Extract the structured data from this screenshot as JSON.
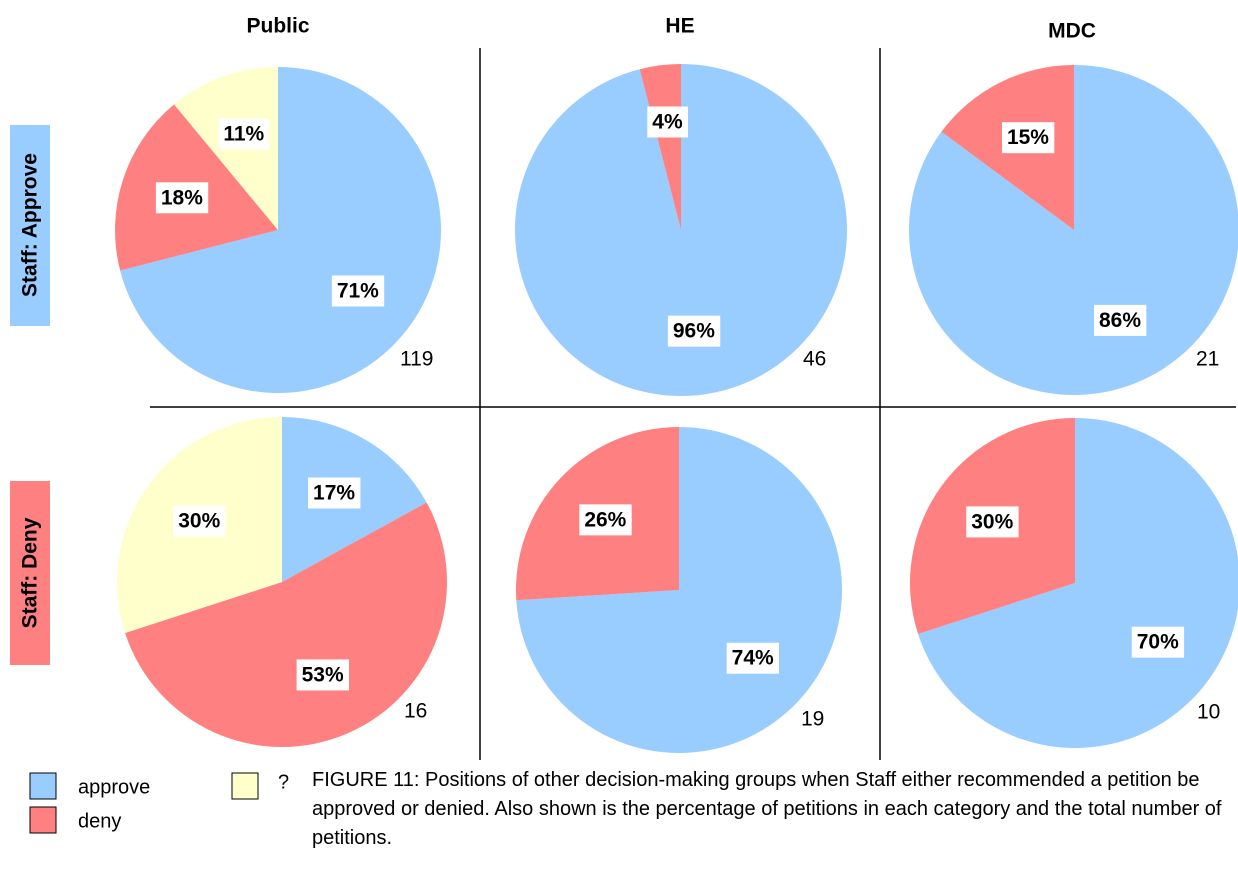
{
  "figure": {
    "columns": [
      "Public",
      "HE",
      "MDC"
    ],
    "rows": [
      "Staff: Approve",
      "Staff: Deny"
    ],
    "caption": "FIGURE 11: Positions of other decision-making groups when Staff either recommended a petition be approved or denied.  Also shown is the percentage of petitions in each category and the total number of petitions."
  },
  "chart_data": [
    {
      "type": "pie",
      "categories": [
        "approve",
        "deny",
        "?"
      ],
      "colors": [
        "#99ccff",
        "#ff8080",
        "#ffffcc"
      ],
      "values": [
        71,
        18,
        11
      ],
      "value_labels": [
        "71%",
        "18%",
        "11%"
      ],
      "n": 119
    },
    {
      "type": "pie",
      "categories": [
        "approve",
        "deny"
      ],
      "colors": [
        "#99ccff",
        "#ff8080"
      ],
      "values": [
        96,
        4
      ],
      "value_labels": [
        "96%",
        "4%"
      ],
      "n": 46
    },
    {
      "type": "pie",
      "categories": [
        "approve",
        "deny"
      ],
      "colors": [
        "#99ccff",
        "#ff8080"
      ],
      "values": [
        86,
        15
      ],
      "value_labels": [
        "86%",
        "15%"
      ],
      "n": 21
    },
    {
      "type": "pie",
      "categories": [
        "approve",
        "deny",
        "?"
      ],
      "colors": [
        "#99ccff",
        "#ff8080",
        "#ffffcc"
      ],
      "values": [
        17,
        53,
        30
      ],
      "value_labels": [
        "17%",
        "53%",
        "30%"
      ],
      "n": 16
    },
    {
      "type": "pie",
      "categories": [
        "approve",
        "deny"
      ],
      "colors": [
        "#99ccff",
        "#ff8080"
      ],
      "values": [
        74,
        26
      ],
      "value_labels": [
        "74%",
        "26%"
      ],
      "n": 19
    },
    {
      "type": "pie",
      "categories": [
        "approve",
        "deny"
      ],
      "colors": [
        "#99ccff",
        "#ff8080"
      ],
      "values": [
        70,
        30
      ],
      "value_labels": [
        "70%",
        "30%"
      ],
      "n": 10
    }
  ]
}
